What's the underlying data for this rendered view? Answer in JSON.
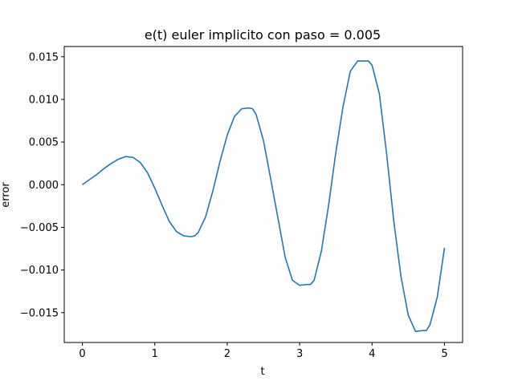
{
  "chart_data": {
    "type": "line",
    "title": "e(t) euler implicito con paso = 0.005",
    "xlabel": "t",
    "ylabel": "error",
    "xlim": [
      -0.25,
      5.25
    ],
    "ylim": [
      -0.0185,
      0.0162
    ],
    "xticks": [
      0,
      1,
      2,
      3,
      4,
      5
    ],
    "xtick_labels": [
      "0",
      "1",
      "2",
      "3",
      "4",
      "5"
    ],
    "yticks": [
      -0.015,
      -0.01,
      -0.005,
      0.0,
      0.005,
      0.01,
      0.015
    ],
    "ytick_labels": [
      "−0.015",
      "−0.010",
      "−0.005",
      "0.000",
      "0.005",
      "0.010",
      "0.015"
    ],
    "grid": false,
    "line_color": "#1f77b4",
    "series": [
      {
        "x": [
          0.0,
          0.1,
          0.2,
          0.3,
          0.4,
          0.5,
          0.6,
          0.7,
          0.8,
          0.9,
          1.0,
          1.1,
          1.2,
          1.3,
          1.4,
          1.5,
          1.55,
          1.6,
          1.7,
          1.8,
          1.9,
          2.0,
          2.1,
          2.2,
          2.3,
          2.35,
          2.4,
          2.5,
          2.6,
          2.7,
          2.8,
          2.9,
          3.0,
          3.1,
          3.15,
          3.2,
          3.3,
          3.4,
          3.5,
          3.6,
          3.7,
          3.8,
          3.9,
          3.95,
          4.0,
          4.1,
          4.2,
          4.3,
          4.4,
          4.5,
          4.6,
          4.7,
          4.75,
          4.8,
          4.9,
          5.0
        ],
        "values": [
          0.0,
          0.0006,
          0.0012,
          0.0019,
          0.0025,
          0.003,
          0.0033,
          0.0032,
          0.0026,
          0.0014,
          -0.0004,
          -0.0024,
          -0.0043,
          -0.0055,
          -0.006,
          -0.0061,
          -0.006,
          -0.0056,
          -0.0038,
          -0.0008,
          0.0027,
          0.0058,
          0.008,
          0.0089,
          0.009,
          0.0089,
          0.0082,
          0.0052,
          0.0007,
          -0.0039,
          -0.0085,
          -0.0112,
          -0.0118,
          -0.0117,
          -0.0117,
          -0.0112,
          -0.0078,
          -0.0024,
          0.0038,
          0.0092,
          0.0133,
          0.0145,
          0.0145,
          0.0145,
          0.014,
          0.0107,
          0.0037,
          -0.0043,
          -0.0108,
          -0.0153,
          -0.0172,
          -0.0171,
          -0.0171,
          -0.0164,
          -0.0132,
          -0.0074
        ]
      }
    ]
  }
}
